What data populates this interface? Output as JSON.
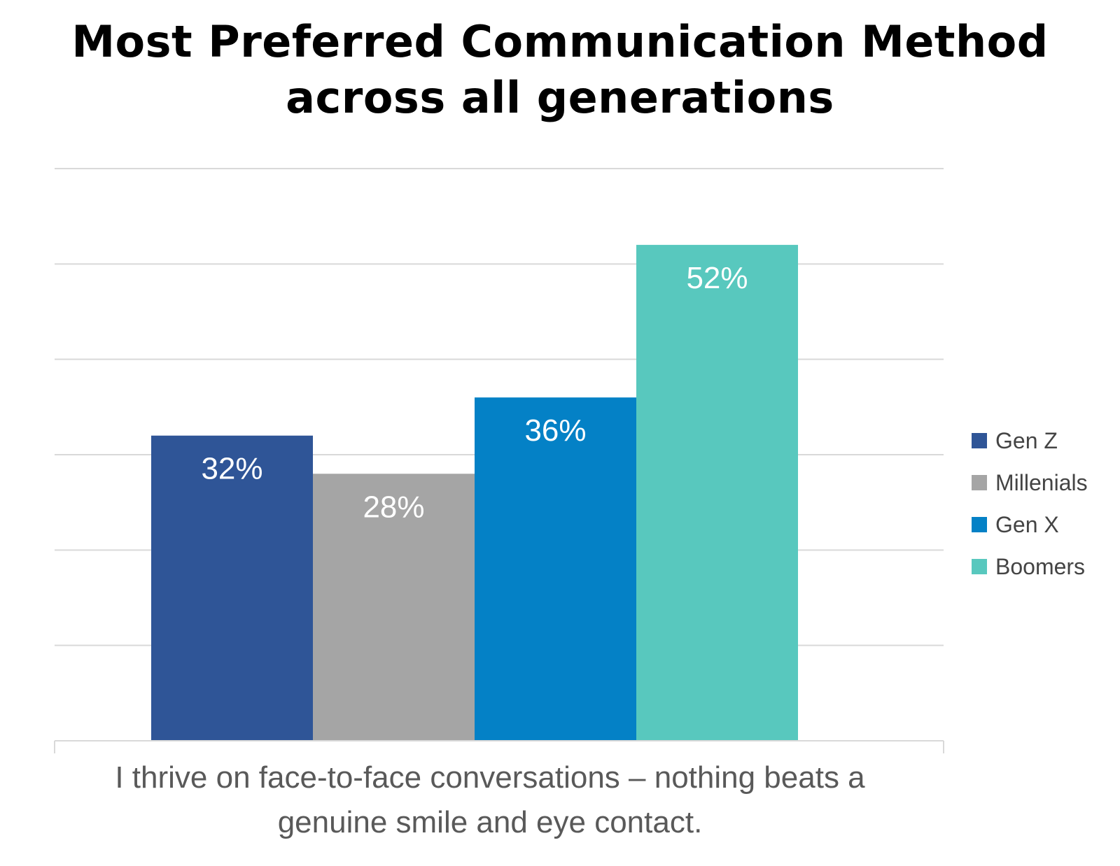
{
  "chart_data": {
    "type": "bar",
    "title_line1": "Most Preferred Communication Method",
    "title_line2": "across all generations",
    "category": "I thrive on face-to-face conversations – nothing beats a genuine smile and eye contact.",
    "category_line1": "I thrive on face-to-face conversations – nothing beats a",
    "category_line2": "genuine smile and eye contact.",
    "series": [
      {
        "name": "Gen Z",
        "value": 32,
        "label": "32%",
        "color": "#2F5597"
      },
      {
        "name": "Millenials",
        "value": 28,
        "label": "28%",
        "color": "#A5A5A5"
      },
      {
        "name": "Gen X",
        "value": 36,
        "label": "36%",
        "color": "#0481C6"
      },
      {
        "name": "Boomers",
        "value": 52,
        "label": "52%",
        "color": "#58C8BE"
      }
    ],
    "ylim": [
      0,
      60
    ],
    "grid": true,
    "legend": "right"
  }
}
